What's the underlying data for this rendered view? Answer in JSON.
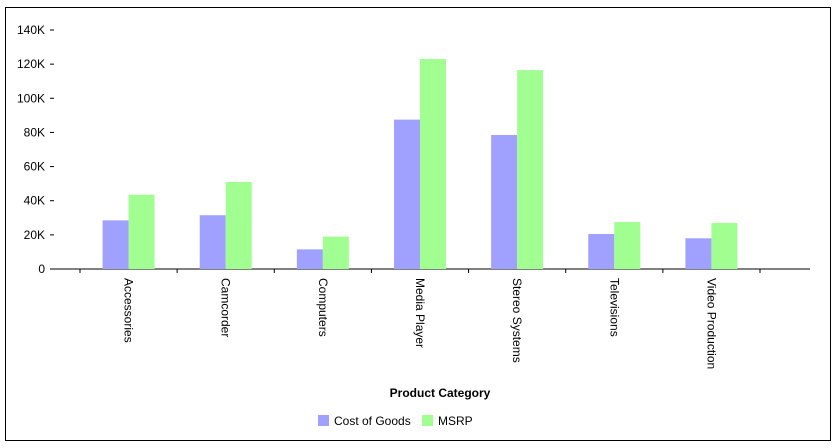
{
  "chart_data": {
    "type": "bar",
    "title": "",
    "xlabel": "Product Category",
    "ylabel": "",
    "ylim": [
      0,
      140000
    ],
    "yticks": [
      0,
      20000,
      40000,
      60000,
      80000,
      100000,
      120000,
      140000
    ],
    "ytick_labels": [
      "0",
      "20K",
      "40K",
      "60K",
      "80K",
      "100K",
      "120K",
      "140K"
    ],
    "categories": [
      "Accessories",
      "Camcorder",
      "Computers",
      "Media Player",
      "Stereo Systems",
      "Televisions",
      "Video Production"
    ],
    "series": [
      {
        "name": "Cost of Goods",
        "color": "#a0a0ff",
        "values": [
          28500,
          31500,
          11500,
          87500,
          78500,
          20500,
          18000
        ]
      },
      {
        "name": "MSRP",
        "color": "#a0ff90",
        "values": [
          43500,
          51000,
          19000,
          123000,
          116500,
          27500,
          27000
        ]
      }
    ],
    "grid": false,
    "legend_position": "bottom-center"
  }
}
